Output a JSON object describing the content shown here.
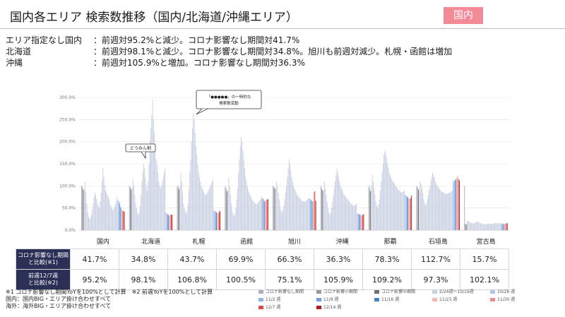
{
  "page": {
    "title": "国内各エリア 検索数推移（国内/北海道/沖縄エリア）",
    "badge": "国内"
  },
  "summary": [
    {
      "label": "エリア指定なし国内",
      "text": "：前週対95.2%と減少。コロナ影響なし期間対41.7%"
    },
    {
      "label": "北海道",
      "text": "：前週対98.1%と減少。コロナ影響なし期間対34.8%。旭川も前週対減少。札幌・函館は増加"
    },
    {
      "label": "沖縄",
      "text": "：前週対105.9%と増加。コロナ影響なし期間対36.3%"
    }
  ],
  "callouts": {
    "trip": "どうみん割",
    "spike_line1": "「●●●●●」の一時的な",
    "spike_line2": "検索数変動"
  },
  "table": {
    "row1_label_line1": "コロナ影響なし期間",
    "row1_label_line2": "と比較(※1)",
    "row2_label_line1": "前週12/7週",
    "row2_label_line2": "と比較(※2)",
    "row1": [
      "41.7%",
      "34.8%",
      "43.7%",
      "69.9%",
      "66.3%",
      "36.3%",
      "78.3%",
      "112.7%",
      "15.7%"
    ],
    "row2": [
      "95.2%",
      "98.1%",
      "106.8%",
      "100.5%",
      "75.1%",
      "105.9%",
      "109.2%",
      "97.3%",
      "102.1%"
    ]
  },
  "notes": [
    "※1 コロナ影響なし期間YoYを100%として計算　※2 前週YoYを100%として計算",
    "国内：国内BIG・エリア掛け合わせすべて",
    "海外：海外BIG・エリア掛け合わせすべて"
  ],
  "legend": [
    {
      "label": "コロナ影響なし期間",
      "color": "#aab0bd"
    },
    {
      "label": "コロナ影響小期間",
      "color": "#9a9a9a"
    },
    {
      "label": "コロナ影響中期間",
      "color": "#6e6e6e"
    },
    {
      "label": "2/24週～10/19週",
      "color": "#c9d0e2"
    },
    {
      "label": "10/26 週",
      "color": "#aec6e8"
    },
    {
      "label": "11/2 週",
      "color": "#8fb4e3"
    },
    {
      "label": "11/9 週",
      "color": "#6f9fdc"
    },
    {
      "label": "11/16 週",
      "color": "#4a80c8"
    },
    {
      "label": "11/23 週",
      "color": "#f4b6b6"
    },
    {
      "label": "11/30 週",
      "color": "#ec8b8b"
    },
    {
      "label": "12/7 週",
      "color": "#dd4a4a"
    },
    {
      "label": "12/14 週",
      "color": "#b01c1c"
    }
  ],
  "chart_data": {
    "type": "bar",
    "ylim": [
      0,
      300
    ],
    "y_ticks": [
      "0.0%",
      "50.0%",
      "100.0%",
      "150.0%",
      "200.0%",
      "250.0%",
      "300.0%"
    ],
    "grid": true,
    "categories": [
      "国内",
      "北海道",
      "札幌",
      "函館",
      "旭川",
      "沖縄",
      "那覇",
      "石垣島",
      "宮古島"
    ],
    "series": [
      {
        "name": "コロナ影響なし期間",
        "values": [
          100,
          100,
          100,
          100,
          100,
          100,
          100,
          100,
          100
        ]
      },
      {
        "name": "コロナ影響小期間",
        "values": [
          98,
          97,
          97,
          95,
          98,
          95,
          95,
          97,
          14
        ]
      },
      {
        "name": "コロナ影響中期間",
        "values": [
          92,
          92,
          92,
          88,
          94,
          90,
          88,
          92,
          13
        ]
      },
      {
        "name": "2/24週～10/19週",
        "values": [
          [
            90,
            110,
            85,
            60,
            40,
            30,
            25,
            28,
            35,
            45,
            60,
            75,
            85,
            80,
            70,
            60,
            55,
            50,
            65,
            85,
            110,
            140,
            120,
            100,
            90,
            85,
            80,
            75,
            70,
            60,
            55,
            50,
            45,
            48,
            52,
            58,
            65,
            75
          ],
          [
            95,
            115,
            100,
            80,
            60,
            50,
            40,
            35,
            40,
            55,
            80,
            110,
            130,
            150,
            140,
            120,
            100,
            90,
            110,
            150,
            200,
            230,
            260,
            295,
            250,
            220,
            180,
            160,
            150,
            130,
            110,
            100,
            95,
            100,
            110,
            120,
            130,
            140
          ],
          [
            100,
            130,
            110,
            85,
            60,
            50,
            42,
            38,
            45,
            60,
            90,
            130,
            160,
            200,
            230,
            265,
            250,
            220,
            190,
            170,
            150,
            130,
            120,
            110,
            100,
            95,
            90,
            85,
            80,
            80,
            82,
            85,
            90,
            95,
            100,
            105,
            110,
            115
          ],
          [
            90,
            120,
            100,
            80,
            60,
            45,
            35,
            30,
            38,
            50,
            70,
            95,
            130,
            160,
            190,
            210,
            200,
            180,
            160,
            140,
            120,
            110,
            100,
            90,
            85,
            80,
            75,
            70,
            68,
            65,
            62,
            60,
            58,
            60,
            62,
            65,
            68,
            70
          ],
          [
            95,
            110,
            100,
            85,
            70,
            55,
            45,
            40,
            45,
            55,
            70,
            85,
            100,
            120,
            140,
            160,
            150,
            135,
            120,
            110,
            100,
            95,
            90,
            85,
            80,
            78,
            75,
            72,
            70,
            68,
            66,
            65,
            64,
            65,
            66,
            68,
            70,
            72
          ],
          [
            90,
            110,
            95,
            80,
            65,
            50,
            40,
            35,
            40,
            50,
            65,
            80,
            95,
            110,
            125,
            140,
            130,
            120,
            110,
            100,
            95,
            90,
            85,
            80,
            78,
            75,
            72,
            70,
            68,
            65,
            62,
            60,
            58,
            56,
            55,
            56,
            58,
            60
          ],
          [
            100,
            125,
            110,
            95,
            80,
            65,
            55,
            50,
            58,
            70,
            90,
            110,
            130,
            150,
            170,
            180,
            175,
            165,
            150,
            140,
            130,
            125,
            120,
            115,
            110,
            108,
            105,
            100,
            98,
            95,
            92,
            90,
            88,
            86,
            85,
            86,
            88,
            90
          ],
          [
            90,
            110,
            105,
            95,
            85,
            70,
            60,
            55,
            60,
            70,
            80,
            90,
            100,
            110,
            120,
            130,
            125,
            120,
            110,
            105,
            100,
            98,
            95,
            92,
            90,
            88,
            86,
            85,
            84,
            83,
            82,
            82,
            83,
            84,
            85,
            86,
            88,
            90
          ],
          [
            20,
            22,
            19,
            18,
            17,
            16,
            15,
            15,
            16,
            17,
            18,
            19,
            20,
            18,
            17,
            16,
            15,
            15,
            14,
            14,
            13,
            13,
            14,
            14,
            15,
            15,
            14,
            14,
            14,
            15,
            15,
            16,
            16,
            16,
            15,
            15,
            15,
            16
          ]
        ]
      },
      {
        "name": "10/26 週",
        "values": [
          68,
          40,
          45,
          75,
          72,
          38,
          80,
          110,
          15
        ]
      },
      {
        "name": "11/2 週",
        "values": [
          65,
          38,
          44,
          72,
          70,
          37,
          78,
          112,
          15
        ]
      },
      {
        "name": "11/9 週",
        "values": [
          60,
          36,
          42,
          70,
          68,
          36,
          76,
          113,
          15
        ]
      },
      {
        "name": "11/16 週",
        "values": [
          52,
          34,
          40,
          66,
          66,
          35,
          74,
          115,
          14
        ]
      },
      {
        "name": "11/23 週",
        "values": [
          46,
          33,
          38,
          65,
          64,
          34,
          72,
          118,
          14
        ]
      },
      {
        "name": "11/30 週",
        "values": [
          44,
          35,
          39,
          68,
          86,
          34,
          71,
          122,
          15
        ]
      },
      {
        "name": "12/7 週",
        "values": [
          43.8,
          35.5,
          40.9,
          69.6,
          88.3,
          34.3,
          71.7,
          115.8,
          15.4
        ]
      },
      {
        "name": "12/14 週",
        "values": [
          41.7,
          34.8,
          43.7,
          69.9,
          66.3,
          36.3,
          78.3,
          112.7,
          15.7
        ]
      }
    ]
  }
}
